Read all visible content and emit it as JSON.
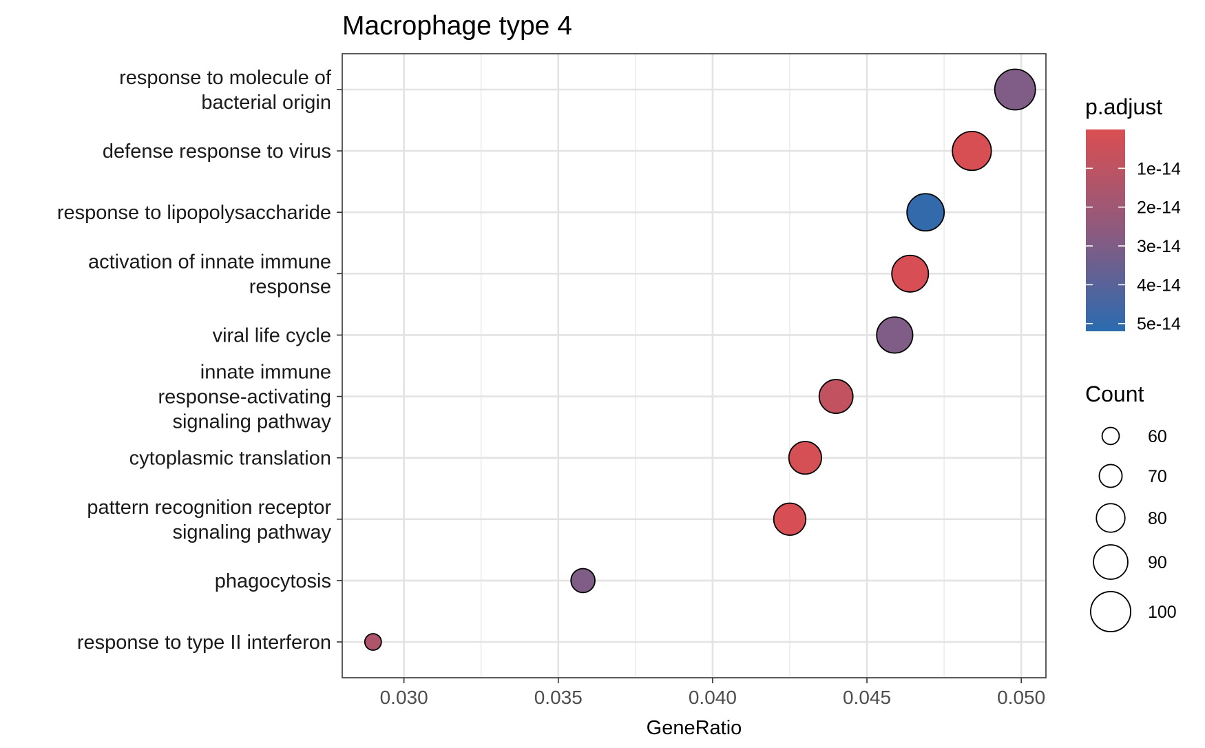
{
  "chart_data": {
    "type": "scatter",
    "title": "Macrophage type 4",
    "xlabel": "GeneRatio",
    "ylabel": "",
    "xlim": [
      0.028,
      0.0508
    ],
    "x_ticks": [
      0.03,
      0.035,
      0.04,
      0.045,
      0.05
    ],
    "x_tick_labels": [
      "0.030",
      "0.035",
      "0.040",
      "0.045",
      "0.050"
    ],
    "grid": true,
    "categories": [
      "response to molecule of\nbacterial origin",
      "defense response to virus",
      "response to lipopolysaccharide",
      "activation of innate immune\nresponse",
      "viral life cycle",
      "innate immune\nresponse-activating\nsignaling pathway",
      "cytoplasmic translation",
      "pattern recognition receptor\nsignaling pathway",
      "phagocytosis",
      "response to type II interferon"
    ],
    "points": [
      {
        "category": "response to molecule of\nbacterial origin",
        "gene_ratio": 0.0498,
        "count": 101,
        "p_adjust": 3e-14
      },
      {
        "category": "defense response to virus",
        "gene_ratio": 0.0484,
        "count": 98,
        "p_adjust": 8e-16
      },
      {
        "category": "response to lipopolysaccharide",
        "gene_ratio": 0.0469,
        "count": 95,
        "p_adjust": 5e-14
      },
      {
        "category": "activation of innate immune\nresponse",
        "gene_ratio": 0.0464,
        "count": 94,
        "p_adjust": 1e-15
      },
      {
        "category": "viral life cycle",
        "gene_ratio": 0.0459,
        "count": 93,
        "p_adjust": 3e-14
      },
      {
        "category": "innate immune\nresponse-activating\nsignaling pathway",
        "gene_ratio": 0.044,
        "count": 89,
        "p_adjust": 8e-15
      },
      {
        "category": "cytoplasmic translation",
        "gene_ratio": 0.043,
        "count": 87,
        "p_adjust": 2e-15
      },
      {
        "category": "pattern recognition receptor\nsignaling pathway",
        "gene_ratio": 0.0425,
        "count": 86,
        "p_adjust": 1e-15
      },
      {
        "category": "phagocytosis",
        "gene_ratio": 0.0358,
        "count": 72,
        "p_adjust": 3e-14
      },
      {
        "category": "response to type II interferon",
        "gene_ratio": 0.029,
        "count": 59,
        "p_adjust": 1.5e-14
      }
    ],
    "color_legend": {
      "title": "p.adjust",
      "low_color": "#DA4F52",
      "mid_color": "#8E5A7E",
      "high_color": "#2A6BB0",
      "range": [
        0,
        5.2e-14
      ],
      "breaks": [
        1e-14,
        2e-14,
        3e-14,
        4e-14,
        5e-14
      ],
      "labels": [
        "1e-14",
        "2e-14",
        "3e-14",
        "4e-14",
        "5e-14"
      ]
    },
    "size_legend": {
      "title": "Count",
      "breaks": [
        60,
        70,
        80,
        90,
        100
      ],
      "labels": [
        "60",
        "70",
        "80",
        "90",
        "100"
      ]
    }
  }
}
